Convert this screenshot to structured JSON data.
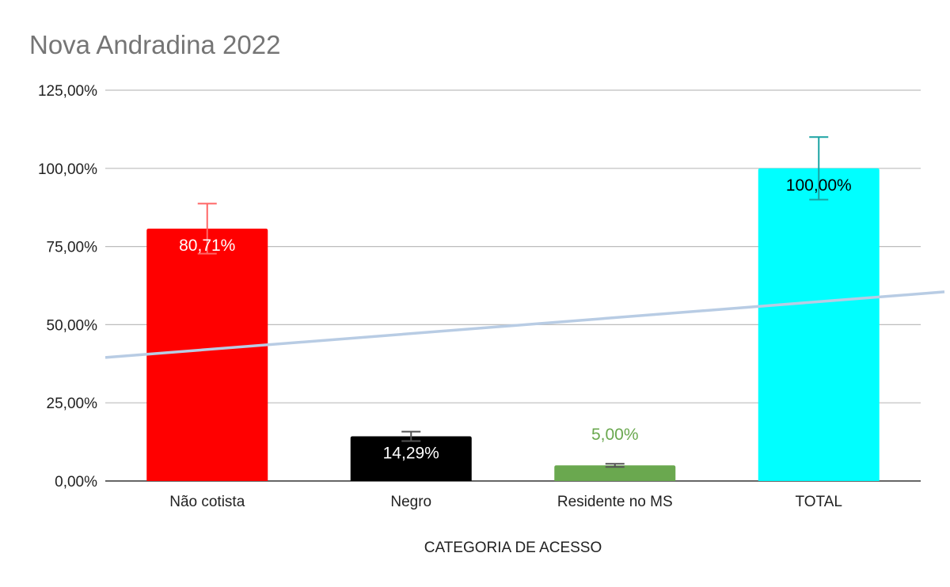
{
  "chart_data": {
    "type": "bar",
    "title": "Nova Andradina 2022",
    "xlabel": "CATEGORIA DE ACESSO",
    "ylabel": "",
    "ylim": [
      0,
      125
    ],
    "y_ticks": [
      "0,00%",
      "25,00%",
      "50,00%",
      "75,00%",
      "100,00%",
      "125,00%"
    ],
    "y_tick_values": [
      0,
      25,
      50,
      75,
      100,
      125
    ],
    "grid": true,
    "legend": "none",
    "categories": [
      "Não cotista",
      "Negro",
      "Residente no MS",
      "TOTAL"
    ],
    "values": [
      80.71,
      14.29,
      5.0,
      100.0
    ],
    "data_labels": [
      "80,71%",
      "14,29%",
      "5,00%",
      "100,00%"
    ],
    "error_bars": [
      {
        "plus": 8,
        "minus": 8
      },
      {
        "plus": 1.5,
        "minus": 1.5
      },
      {
        "plus": 0.5,
        "minus": 0.5
      },
      {
        "plus": 10,
        "minus": 10
      }
    ],
    "trendline": {
      "type": "linear",
      "start": 39.5,
      "end": 60.5,
      "color": "#b8cce4"
    },
    "colors": {
      "bars": [
        "#ff0000",
        "#000000",
        "#6aa84f",
        "#00ffff"
      ],
      "error_bars": [
        "#ff6666",
        "#555555",
        "#555555",
        "#1aa3a3"
      ],
      "data_labels": [
        "#ffffff",
        "#ffffff",
        "#6aa84f",
        "#000000"
      ]
    }
  }
}
